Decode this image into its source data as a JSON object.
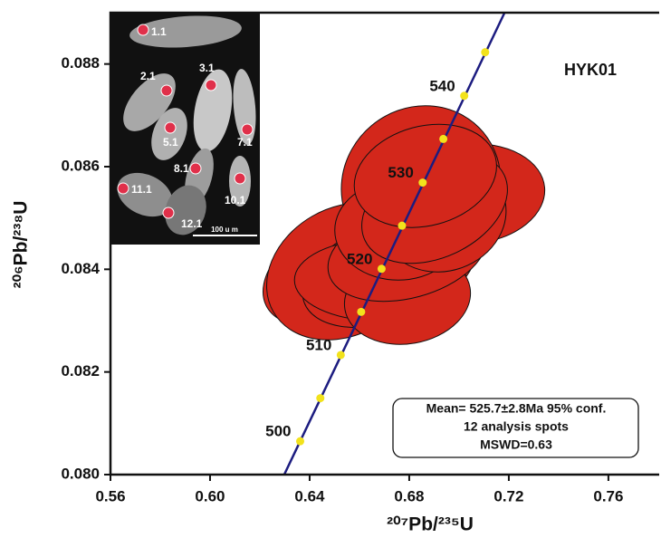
{
  "chart_data": {
    "type": "concordia",
    "sample": "HYK01",
    "x_label": "²⁰⁷Pb/²³⁵U",
    "y_label": "²⁰⁶Pb/²³⁸U",
    "xlim": [
      0.56,
      0.7804
    ],
    "ylim": [
      0.08,
      0.089
    ],
    "xticks": [
      0.56,
      {
        "value": 0.6,
        "label": "0.60"
      },
      0.64,
      0.68,
      0.72,
      0.76
    ],
    "yticks": [
      {
        "value": 0.08,
        "label": "0.080"
      },
      0.082,
      0.084,
      0.086,
      0.088
    ],
    "line_color": "#1c1c80",
    "dot_color": "#f2e21c",
    "ellipse_color": "#d3271b",
    "concordia_line": {
      "x": [
        0.6298,
        0.7183
      ],
      "y": [
        0.08,
        0.089
      ]
    },
    "concordia_points": {
      "x": [
        0.6362,
        0.6443,
        0.6525,
        0.6607,
        0.6689,
        0.6771,
        0.6854,
        0.6937,
        0.7021,
        0.7105
      ],
      "y": [
        0.08065,
        0.08149,
        0.08233,
        0.08317,
        0.08401,
        0.08485,
        0.08569,
        0.08654,
        0.08738,
        0.08823
      ]
    },
    "age_labels": [
      500,
      510,
      520,
      530,
      540
    ],
    "ellipses": [
      {
        "x": 0.6593,
        "y": 0.08414,
        "sx": 0.0407,
        "sy": 0.00106,
        "angle": -25
      },
      {
        "x": 0.7047,
        "y": 0.08547,
        "sx": 0.0298,
        "sy": 0.00097,
        "angle": -5
      },
      {
        "x": 0.6847,
        "y": 0.08565,
        "sx": 0.0327,
        "sy": 0.0015,
        "angle": -40
      },
      {
        "x": 0.6538,
        "y": 0.08396,
        "sx": 0.0327,
        "sy": 0.00124,
        "angle": -30
      },
      {
        "x": 0.672,
        "y": 0.08396,
        "sx": 0.0364,
        "sy": 0.00097,
        "angle": -20
      },
      {
        "x": 0.6684,
        "y": 0.08379,
        "sx": 0.0345,
        "sy": 0.0008,
        "angle": 0
      },
      {
        "x": 0.6793,
        "y": 0.08343,
        "sx": 0.0255,
        "sy": 0.00088,
        "angle": -10
      },
      {
        "x": 0.6793,
        "y": 0.08432,
        "sx": 0.0327,
        "sy": 0.00088,
        "angle": -15
      },
      {
        "x": 0.6756,
        "y": 0.08476,
        "sx": 0.0255,
        "sy": 0.00097,
        "angle": 0
      },
      {
        "x": 0.6938,
        "y": 0.08503,
        "sx": 0.0255,
        "sy": 0.00106,
        "angle": -20
      },
      {
        "x": 0.6902,
        "y": 0.0852,
        "sx": 0.0309,
        "sy": 0.00097,
        "angle": -25
      },
      {
        "x": 0.6865,
        "y": 0.08582,
        "sx": 0.0291,
        "sy": 0.00097,
        "angle": -15
      }
    ],
    "result_box": [
      "Mean= 525.7±2.8Ma 95% conf.",
      "12 analysis spots",
      "MSWD=0.63"
    ],
    "inset": {
      "spot_labels": [
        "1.1",
        "2.1",
        "3.1",
        "5.1",
        "7.1",
        "8.1",
        "10.1",
        "11.1",
        "12.1"
      ],
      "scale_bar": "100 u m"
    }
  }
}
